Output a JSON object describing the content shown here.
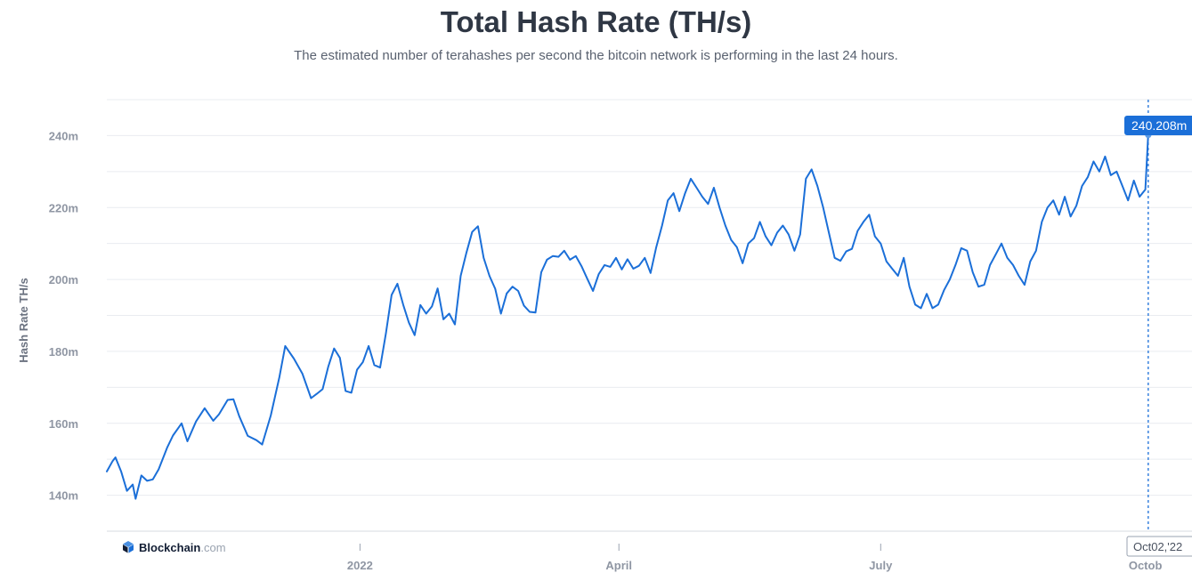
{
  "title": "Total Hash Rate (TH/s)",
  "subtitle": "The estimated number of terahashes per second the bitcoin network is performing in the last 24 hours.",
  "branding": {
    "name": "Blockchain",
    "suffix": ".com",
    "icon": "blockchain-cube-icon"
  },
  "colors": {
    "line": "#1b6fd8",
    "tooltip": "#1b6fd8",
    "grid": "#e9ecf0"
  },
  "chart_data": {
    "type": "line",
    "title": "Total Hash Rate (TH/s)",
    "xlabel": "",
    "ylabel": "Hash Rate TH/s",
    "ylim": [
      130,
      250
    ],
    "y_unit": "m",
    "y_ticks": [
      140,
      160,
      180,
      200,
      220,
      240
    ],
    "y_tick_labels": [
      "140m",
      "160m",
      "180m",
      "200m",
      "220m",
      "240m"
    ],
    "xlim": [
      "2021-10-05",
      "2022-10-07"
    ],
    "x_ticks": [
      {
        "date": "2022-01-01",
        "label": "2022"
      },
      {
        "date": "2022-04-01",
        "label": "April"
      },
      {
        "date": "2022-07-01",
        "label": "July"
      },
      {
        "date": "2022-10-01",
        "label": "Octob"
      }
    ],
    "grid": true,
    "series": [
      {
        "name": "",
        "x": [
          "2021-10-05",
          "2021-10-07",
          "2021-10-08",
          "2021-10-10",
          "2021-10-12",
          "2021-10-14",
          "2021-10-15",
          "2021-10-17",
          "2021-10-19",
          "2021-10-21",
          "2021-10-23",
          "2021-10-26",
          "2021-10-28",
          "2021-10-31",
          "2021-11-02",
          "2021-11-05",
          "2021-11-08",
          "2021-11-11",
          "2021-11-13",
          "2021-11-16",
          "2021-11-18",
          "2021-11-20",
          "2021-11-23",
          "2021-11-26",
          "2021-11-28",
          "2021-12-01",
          "2021-12-04",
          "2021-12-06",
          "2021-12-09",
          "2021-12-12",
          "2021-12-15",
          "2021-12-17",
          "2021-12-19",
          "2021-12-21",
          "2021-12-23",
          "2021-12-25",
          "2021-12-27",
          "2021-12-29",
          "2021-12-31",
          "2022-01-02",
          "2022-01-04",
          "2022-01-06",
          "2022-01-08",
          "2022-01-10",
          "2022-01-12",
          "2022-01-14",
          "2022-01-16",
          "2022-01-18",
          "2022-01-20",
          "2022-01-22",
          "2022-01-24",
          "2022-01-26",
          "2022-01-28",
          "2022-01-30",
          "2022-02-01",
          "2022-02-03",
          "2022-02-05",
          "2022-02-07",
          "2022-02-09",
          "2022-02-11",
          "2022-02-13",
          "2022-02-15",
          "2022-02-17",
          "2022-02-19",
          "2022-02-21",
          "2022-02-23",
          "2022-02-25",
          "2022-02-27",
          "2022-03-01",
          "2022-03-03",
          "2022-03-05",
          "2022-03-07",
          "2022-03-09",
          "2022-03-11",
          "2022-03-13",
          "2022-03-15",
          "2022-03-17",
          "2022-03-19",
          "2022-03-21",
          "2022-03-23",
          "2022-03-25",
          "2022-03-27",
          "2022-03-29",
          "2022-03-31",
          "2022-04-02",
          "2022-04-04",
          "2022-04-06",
          "2022-04-08",
          "2022-04-10",
          "2022-04-12",
          "2022-04-14",
          "2022-04-16",
          "2022-04-18",
          "2022-04-20",
          "2022-04-22",
          "2022-04-24",
          "2022-04-26",
          "2022-04-28",
          "2022-04-30",
          "2022-05-02",
          "2022-05-04",
          "2022-05-06",
          "2022-05-08",
          "2022-05-10",
          "2022-05-12",
          "2022-05-14",
          "2022-05-16",
          "2022-05-18",
          "2022-05-20",
          "2022-05-22",
          "2022-05-24",
          "2022-05-26",
          "2022-05-28",
          "2022-05-30",
          "2022-06-01",
          "2022-06-03",
          "2022-06-05",
          "2022-06-07",
          "2022-06-09",
          "2022-06-11",
          "2022-06-13",
          "2022-06-15",
          "2022-06-17",
          "2022-06-19",
          "2022-06-21",
          "2022-06-23",
          "2022-06-25",
          "2022-06-27",
          "2022-06-29",
          "2022-07-01",
          "2022-07-03",
          "2022-07-05",
          "2022-07-07",
          "2022-07-09",
          "2022-07-11",
          "2022-07-13",
          "2022-07-15",
          "2022-07-17",
          "2022-07-19",
          "2022-07-21",
          "2022-07-23",
          "2022-07-25",
          "2022-07-27",
          "2022-07-29",
          "2022-07-31",
          "2022-08-02",
          "2022-08-04",
          "2022-08-06",
          "2022-08-08",
          "2022-08-10",
          "2022-08-12",
          "2022-08-14",
          "2022-08-16",
          "2022-08-18",
          "2022-08-20",
          "2022-08-22",
          "2022-08-24",
          "2022-08-26",
          "2022-08-28",
          "2022-08-30",
          "2022-09-01",
          "2022-09-03",
          "2022-09-05",
          "2022-09-07",
          "2022-09-09",
          "2022-09-11",
          "2022-09-13",
          "2022-09-15",
          "2022-09-17",
          "2022-09-19",
          "2022-09-21",
          "2022-09-23",
          "2022-09-25",
          "2022-09-27",
          "2022-09-29",
          "2022-10-01",
          "2022-10-02"
        ],
        "values": [
          146.6,
          149.5,
          150.5,
          146.5,
          141.2,
          143,
          139,
          145.5,
          144,
          144.4,
          147.2,
          153.3,
          156.6,
          160,
          155,
          160.5,
          164.2,
          160.7,
          162.5,
          166.5,
          166.7,
          162,
          156.5,
          155.3,
          154.1,
          162.2,
          172.9,
          181.5,
          178,
          173.8,
          167,
          168.2,
          169.5,
          175.8,
          180.8,
          178.2,
          169,
          168.5,
          174.9,
          177,
          181.5,
          176.2,
          175.5,
          185,
          195.7,
          198.8,
          193,
          188,
          184.5,
          192.9,
          190.5,
          192.5,
          197.5,
          188.9,
          190.5,
          187.5,
          201,
          207.5,
          213.2,
          214.8,
          206,
          201,
          197.4,
          190.5,
          196.1,
          198,
          196.8,
          192.7,
          191,
          190.8,
          202,
          205.5,
          206.5,
          206.3,
          208,
          205.5,
          206.5,
          203.7,
          200.2,
          196.8,
          201.5,
          204,
          203.5,
          206,
          202.8,
          205.6,
          203,
          203.8,
          206,
          201.8,
          209,
          215,
          222,
          224,
          219,
          224,
          228,
          225.5,
          223,
          221,
          225.5,
          220,
          215,
          211,
          209,
          204.5,
          210,
          211.5,
          216,
          212,
          209.5,
          213,
          215,
          212.5,
          208,
          212.5,
          228,
          230.6,
          226,
          220,
          213,
          206,
          205.2,
          207.8,
          208.5,
          213.5,
          216,
          218,
          212,
          210,
          205,
          203,
          201,
          206,
          198,
          193,
          192,
          196,
          192,
          193,
          197,
          200,
          204,
          208.7,
          208,
          202,
          198,
          198.5,
          204,
          207,
          210,
          206,
          204,
          201,
          198.5,
          205,
          208,
          216,
          220,
          222,
          218,
          223,
          217.5,
          220.5,
          226,
          228.5,
          232.8,
          230,
          234.2,
          229,
          230,
          226,
          222,
          227.5,
          223,
          225,
          240.2
        ]
      }
    ],
    "annotations": [
      {
        "type": "hover-tooltip",
        "x": "2022-10-02",
        "x_label": "Oct02,'22",
        "y": 240.208,
        "value_label": "240.208m"
      }
    ]
  }
}
